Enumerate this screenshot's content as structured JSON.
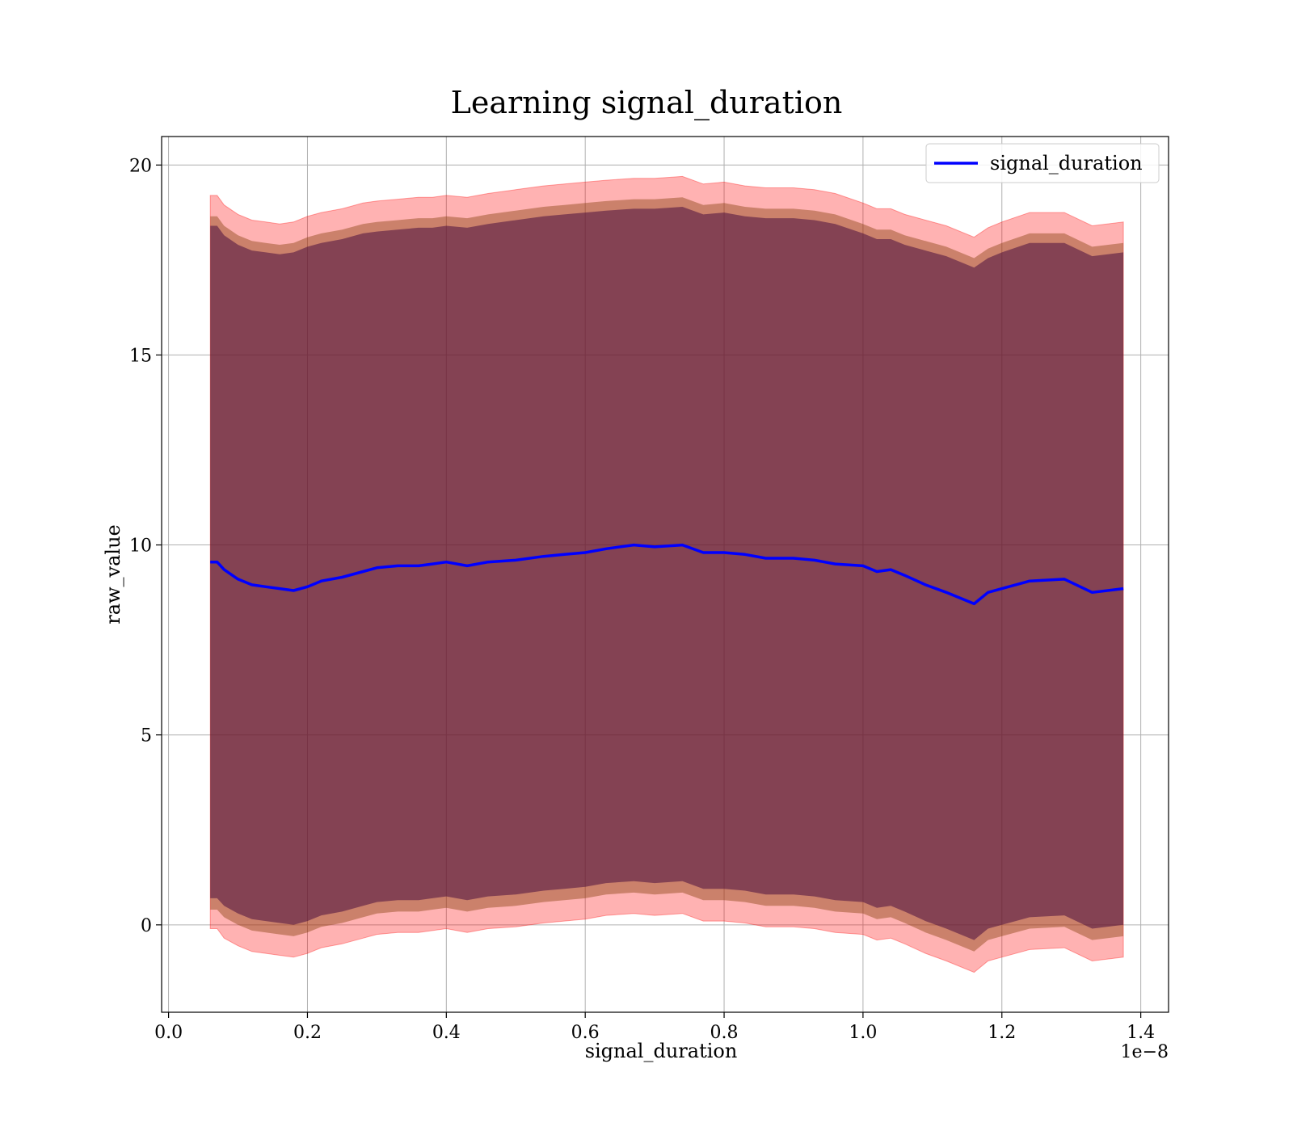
{
  "chart_data": {
    "type": "line",
    "title": "Learning signal_duration",
    "xlabel": "signal_duration",
    "ylabel": "raw_value",
    "x_offset_label": "1e−8",
    "xlim": [
      -1e-10,
      1.44e-08
    ],
    "ylim": [
      -2.3,
      20.75
    ],
    "x_ticks": [
      0.0,
      2e-09,
      4e-09,
      6e-09,
      8e-09,
      1e-08,
      1.2e-08,
      1.4e-08
    ],
    "x_tick_labels": [
      "0.0",
      "0.2",
      "0.4",
      "0.6",
      "0.8",
      "1.0",
      "1.2",
      "1.4"
    ],
    "y_ticks": [
      0,
      5,
      10,
      15,
      20
    ],
    "y_tick_labels": [
      "0",
      "5",
      "10",
      "15",
      "20"
    ],
    "grid": true,
    "legend_position": "top-right",
    "colors": {
      "line": "#0000ff",
      "band_outer": "#ff0000",
      "band_middle": "#8b4513",
      "band_inner": "#4b0f3f"
    },
    "series": [
      {
        "name": "signal_duration",
        "x": [
          6e-10,
          7e-10,
          8e-10,
          1e-09,
          1.2e-09,
          1.4e-09,
          1.6e-09,
          1.8e-09,
          2e-09,
          2.2e-09,
          2.5e-09,
          2.8e-09,
          3e-09,
          3.3e-09,
          3.6e-09,
          3.8e-09,
          4e-09,
          4.3e-09,
          4.6e-09,
          5e-09,
          5.4e-09,
          5.7e-09,
          6e-09,
          6.3e-09,
          6.7e-09,
          7e-09,
          7.4e-09,
          7.7e-09,
          8e-09,
          8.3e-09,
          8.6e-09,
          9e-09,
          9.3e-09,
          9.6e-09,
          1e-08,
          1.02e-08,
          1.04e-08,
          1.06e-08,
          1.09e-08,
          1.12e-08,
          1.16e-08,
          1.18e-08,
          1.2e-08,
          1.24e-08,
          1.29e-08,
          1.33e-08,
          1.375e-08
        ],
        "values": [
          9.55,
          9.55,
          9.35,
          9.1,
          8.95,
          8.9,
          8.85,
          8.8,
          8.9,
          9.05,
          9.15,
          9.3,
          9.4,
          9.45,
          9.45,
          9.5,
          9.55,
          9.45,
          9.55,
          9.6,
          9.7,
          9.75,
          9.8,
          9.9,
          10.0,
          9.95,
          10.0,
          9.8,
          9.8,
          9.75,
          9.65,
          9.65,
          9.6,
          9.5,
          9.45,
          9.3,
          9.35,
          9.2,
          8.95,
          8.75,
          8.45,
          8.75,
          8.85,
          9.05,
          9.1,
          8.75,
          8.85
        ],
        "upper_outer": [
          19.2,
          19.2,
          18.95,
          18.7,
          18.55,
          18.5,
          18.45,
          18.5,
          18.65,
          18.75,
          18.85,
          19.0,
          19.05,
          19.1,
          19.15,
          19.15,
          19.2,
          19.15,
          19.25,
          19.35,
          19.45,
          19.5,
          19.55,
          19.6,
          19.65,
          19.65,
          19.7,
          19.5,
          19.55,
          19.45,
          19.4,
          19.4,
          19.35,
          19.25,
          19.0,
          18.85,
          18.85,
          18.7,
          18.55,
          18.4,
          18.1,
          18.35,
          18.5,
          18.75,
          18.75,
          18.4,
          18.5
        ],
        "upper_mid": [
          18.65,
          18.65,
          18.4,
          18.15,
          18.0,
          17.95,
          17.9,
          17.95,
          18.1,
          18.2,
          18.3,
          18.45,
          18.5,
          18.55,
          18.6,
          18.6,
          18.65,
          18.6,
          18.7,
          18.8,
          18.9,
          18.95,
          19.0,
          19.05,
          19.1,
          19.1,
          19.15,
          18.95,
          19.0,
          18.9,
          18.85,
          18.85,
          18.8,
          18.7,
          18.45,
          18.3,
          18.3,
          18.15,
          18.0,
          17.85,
          17.55,
          17.8,
          17.95,
          18.2,
          18.2,
          17.85,
          17.95
        ],
        "upper_inner": [
          18.4,
          18.4,
          18.15,
          17.9,
          17.75,
          17.7,
          17.65,
          17.7,
          17.85,
          17.95,
          18.05,
          18.2,
          18.25,
          18.3,
          18.35,
          18.35,
          18.4,
          18.35,
          18.45,
          18.55,
          18.65,
          18.7,
          18.75,
          18.8,
          18.85,
          18.85,
          18.9,
          18.7,
          18.75,
          18.65,
          18.6,
          18.6,
          18.55,
          18.45,
          18.2,
          18.05,
          18.05,
          17.9,
          17.75,
          17.6,
          17.3,
          17.55,
          17.7,
          17.95,
          17.95,
          17.6,
          17.7
        ],
        "lower_inner": [
          0.7,
          0.7,
          0.5,
          0.3,
          0.15,
          0.1,
          0.05,
          0.0,
          0.1,
          0.25,
          0.35,
          0.5,
          0.6,
          0.65,
          0.65,
          0.7,
          0.75,
          0.65,
          0.75,
          0.8,
          0.9,
          0.95,
          1.0,
          1.1,
          1.15,
          1.1,
          1.15,
          0.95,
          0.95,
          0.9,
          0.8,
          0.8,
          0.75,
          0.65,
          0.6,
          0.45,
          0.5,
          0.35,
          0.1,
          -0.1,
          -0.4,
          -0.1,
          0.0,
          0.2,
          0.25,
          -0.1,
          0.0
        ],
        "lower_mid": [
          0.4,
          0.4,
          0.2,
          0.0,
          -0.15,
          -0.2,
          -0.25,
          -0.3,
          -0.2,
          -0.05,
          0.05,
          0.2,
          0.3,
          0.35,
          0.35,
          0.4,
          0.45,
          0.35,
          0.45,
          0.5,
          0.6,
          0.65,
          0.7,
          0.8,
          0.85,
          0.8,
          0.85,
          0.65,
          0.65,
          0.6,
          0.5,
          0.5,
          0.45,
          0.35,
          0.3,
          0.15,
          0.2,
          0.05,
          -0.2,
          -0.4,
          -0.7,
          -0.4,
          -0.3,
          -0.1,
          -0.05,
          -0.4,
          -0.3
        ],
        "lower_outer": [
          -0.1,
          -0.1,
          -0.35,
          -0.55,
          -0.7,
          -0.75,
          -0.8,
          -0.85,
          -0.75,
          -0.6,
          -0.5,
          -0.35,
          -0.25,
          -0.2,
          -0.2,
          -0.15,
          -0.1,
          -0.2,
          -0.1,
          -0.05,
          0.05,
          0.1,
          0.15,
          0.25,
          0.3,
          0.25,
          0.3,
          0.1,
          0.1,
          0.05,
          -0.05,
          -0.05,
          -0.1,
          -0.2,
          -0.25,
          -0.4,
          -0.35,
          -0.5,
          -0.75,
          -0.95,
          -1.25,
          -0.95,
          -0.85,
          -0.65,
          -0.6,
          -0.95,
          -0.85
        ]
      }
    ]
  }
}
